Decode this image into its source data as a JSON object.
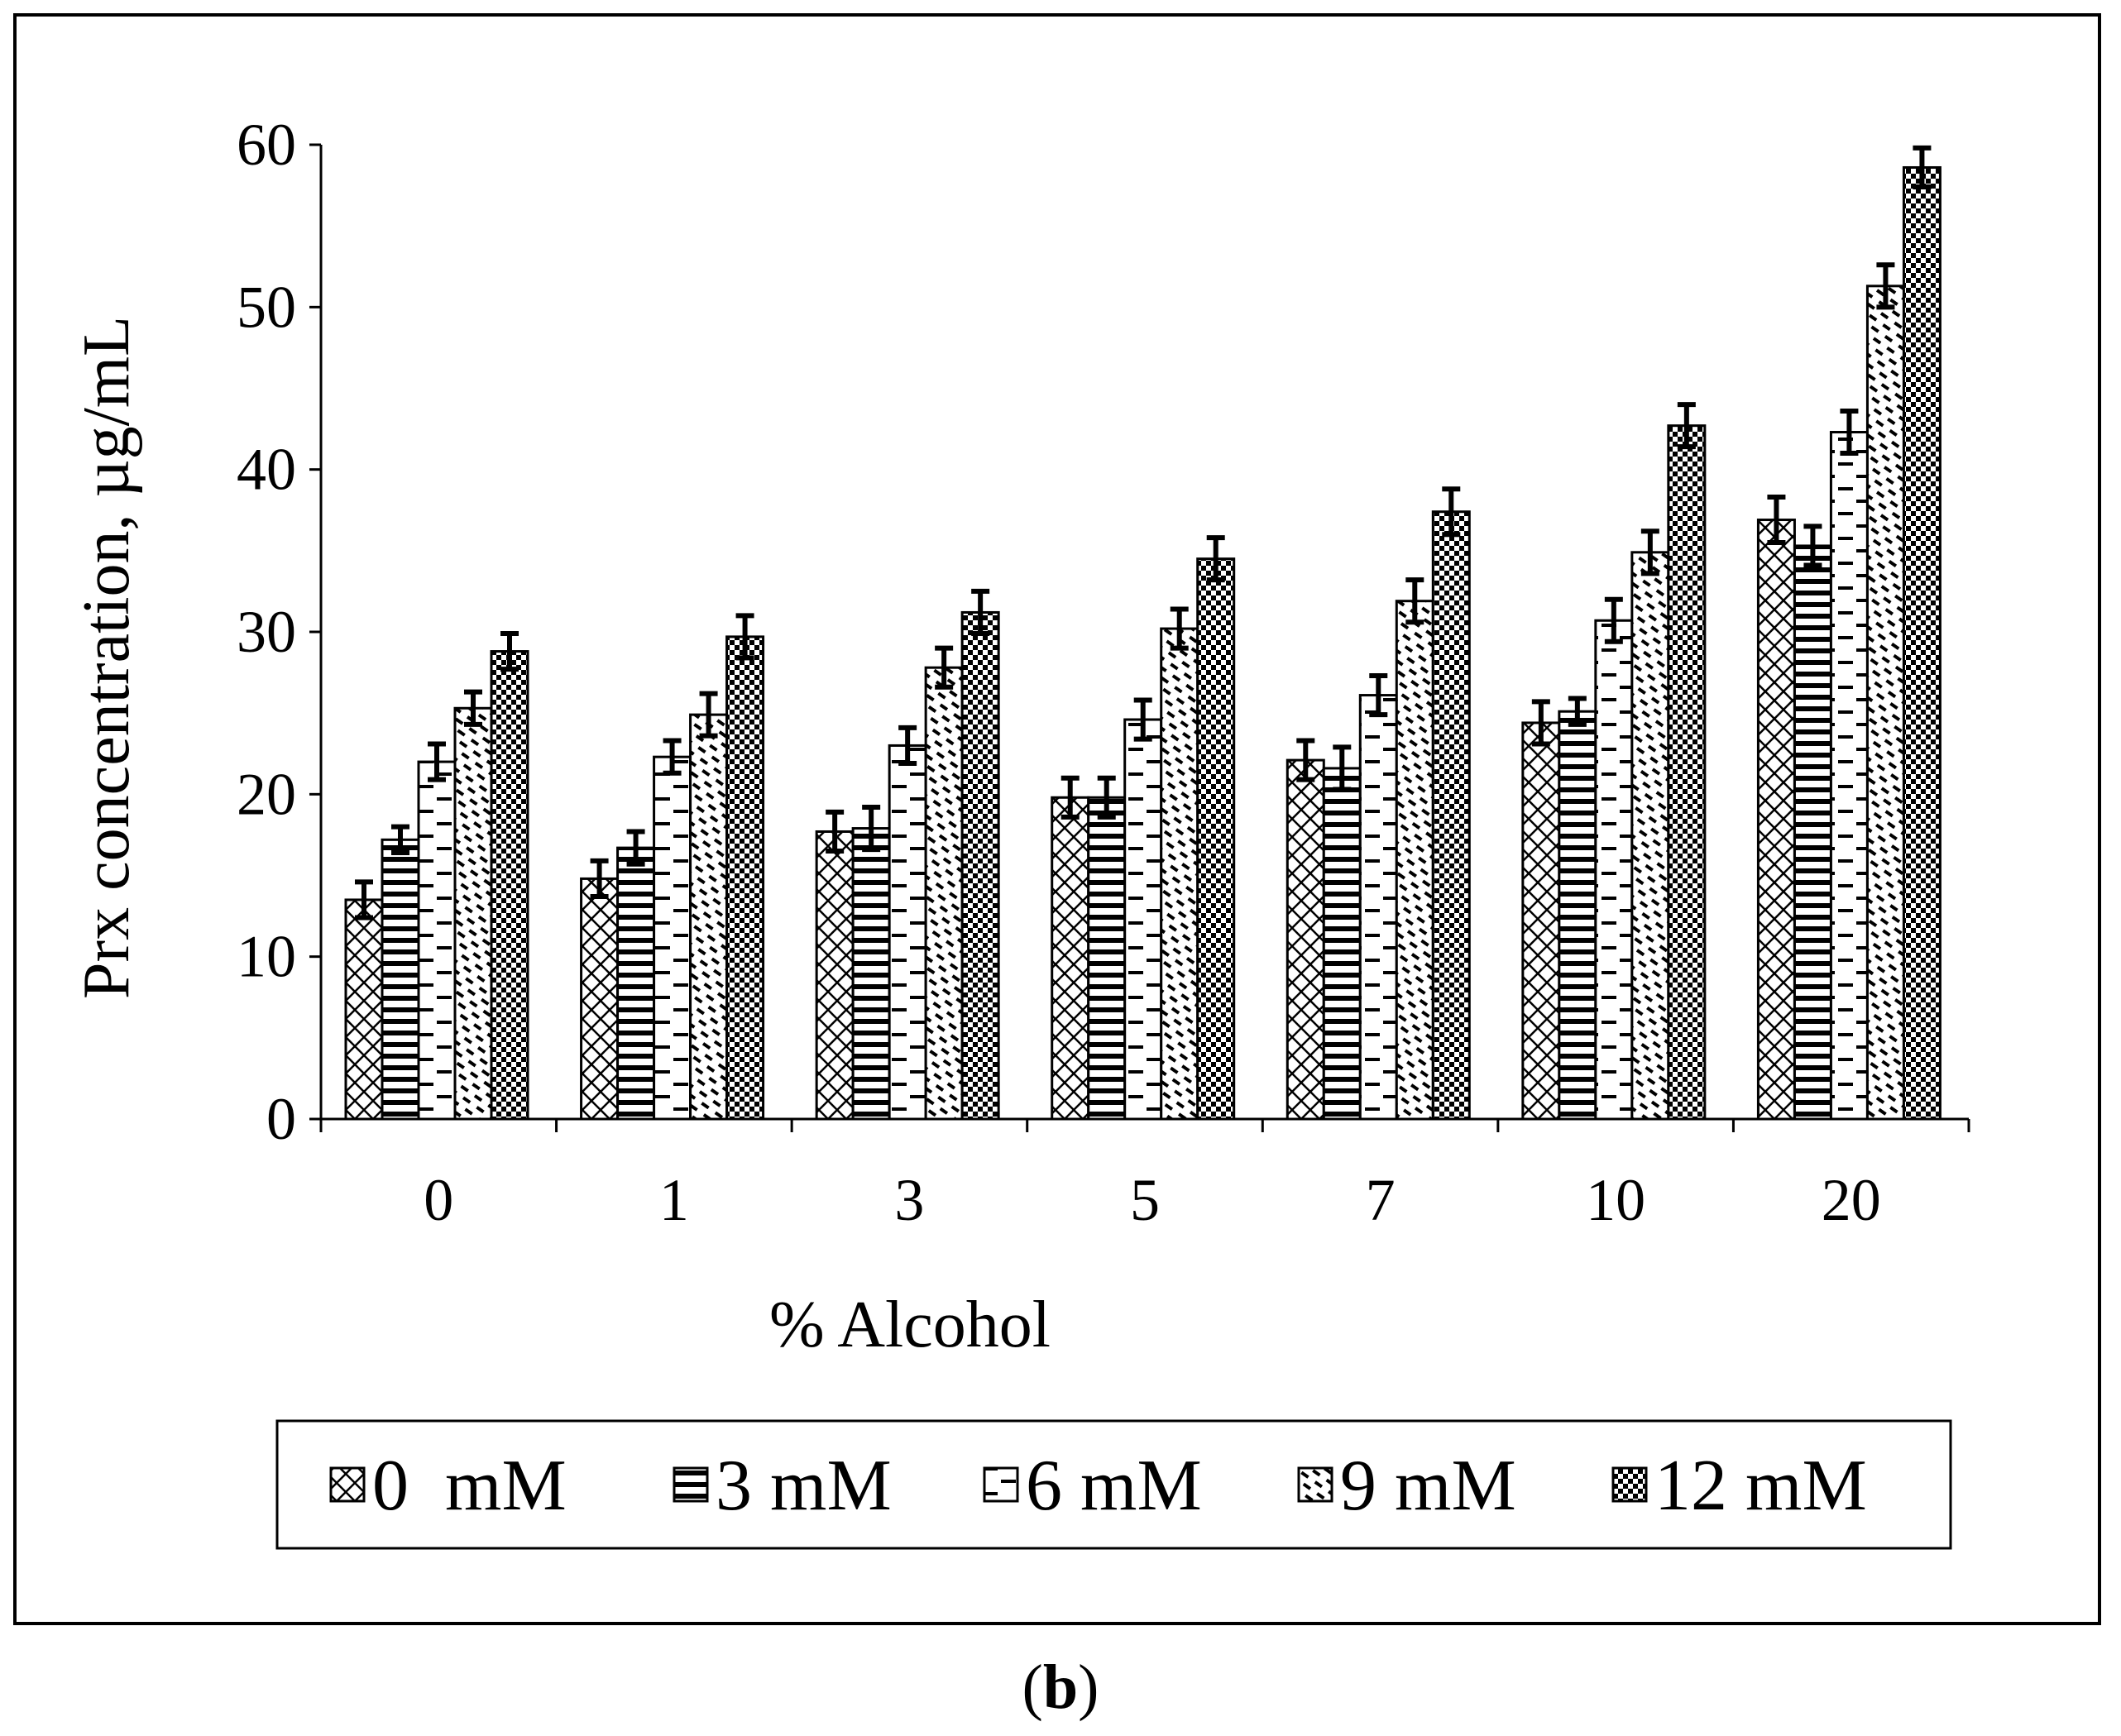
{
  "chart_data": {
    "type": "bar",
    "title": "",
    "xlabel": "% Alcohol",
    "ylabel": "Prx concentration, µg/mL",
    "ylim": [
      0,
      60
    ],
    "yticks": [
      0,
      10,
      20,
      30,
      40,
      50,
      60
    ],
    "grid": false,
    "legend_position": "bottom",
    "categories": [
      "0",
      "1",
      "3",
      "5",
      "7",
      "10",
      "20"
    ],
    "series": [
      {
        "name": "0  mM",
        "pattern": "crosshatch",
        "values": [
          13.5,
          14.8,
          17.7,
          19.8,
          22.1,
          24.4,
          36.9
        ],
        "errors": [
          1.1,
          1.1,
          1.2,
          1.2,
          1.2,
          1.3,
          1.4
        ]
      },
      {
        "name": "3 mM",
        "pattern": "horizontal",
        "values": [
          17.2,
          16.7,
          17.9,
          19.8,
          21.6,
          25.1,
          35.3
        ],
        "errors": [
          0.8,
          1.0,
          1.3,
          1.2,
          1.3,
          0.8,
          1.2
        ]
      },
      {
        "name": "6 mM",
        "pattern": "dashes",
        "values": [
          22.0,
          22.3,
          23.0,
          24.6,
          26.1,
          30.7,
          42.3
        ],
        "errors": [
          1.1,
          1.0,
          1.1,
          1.2,
          1.2,
          1.3,
          1.3
        ]
      },
      {
        "name": "9 mM",
        "pattern": "diagonal-dashes",
        "values": [
          25.3,
          24.9,
          27.8,
          30.2,
          31.9,
          34.9,
          51.3
        ],
        "errors": [
          1.0,
          1.3,
          1.2,
          1.2,
          1.3,
          1.3,
          1.3
        ]
      },
      {
        "name": "12 mM",
        "pattern": "checker",
        "values": [
          28.8,
          29.7,
          31.2,
          34.5,
          37.4,
          42.7,
          58.6
        ],
        "errors": [
          1.1,
          1.3,
          1.3,
          1.3,
          1.4,
          1.3,
          1.2
        ]
      }
    ]
  },
  "caption": {
    "open": "(",
    "letter": "b",
    "close": ")"
  }
}
